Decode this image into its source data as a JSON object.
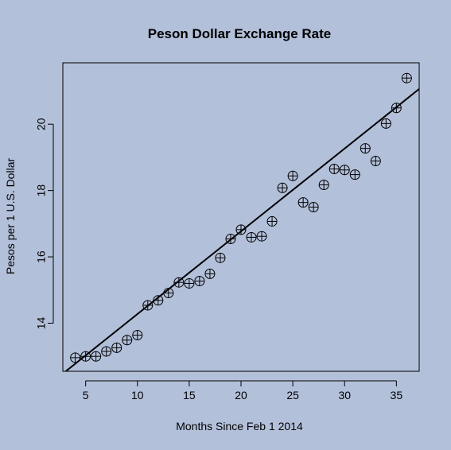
{
  "chart_data": {
    "type": "scatter",
    "title": "Peson Dollar Exchange Rate",
    "xlabel": "Months Since Feb 1 2014",
    "ylabel": "Pesos per 1 U.S. Dollar",
    "xlim": [
      2.8,
      37.2
    ],
    "ylim": [
      12.55,
      21.85
    ],
    "xticks": [
      5,
      10,
      15,
      20,
      25,
      30,
      35
    ],
    "yticks": [
      14,
      16,
      18,
      20
    ],
    "grid": false,
    "legend": "none",
    "marker": "circle-cross",
    "x": [
      4,
      5,
      6,
      7,
      8,
      9,
      10,
      11,
      12,
      13,
      14,
      15,
      16,
      17,
      18,
      19,
      20,
      21,
      22,
      23,
      24,
      25,
      26,
      27,
      28,
      29,
      30,
      31,
      32,
      33,
      34,
      35,
      36
    ],
    "y": [
      12.96,
      13.0,
      13.0,
      13.15,
      13.26,
      13.49,
      13.64,
      14.54,
      14.69,
      14.91,
      15.23,
      15.2,
      15.27,
      15.49,
      15.97,
      16.54,
      16.82,
      16.59,
      16.62,
      17.07,
      18.08,
      18.44,
      17.64,
      17.5,
      18.17,
      18.65,
      18.62,
      18.48,
      19.27,
      18.89,
      20.02,
      20.49,
      21.39
    ],
    "fit_line": {
      "slope": 0.2495,
      "intercept": 11.78
    },
    "colors": {
      "background": "#b3c0da",
      "marks": "#000000"
    }
  }
}
